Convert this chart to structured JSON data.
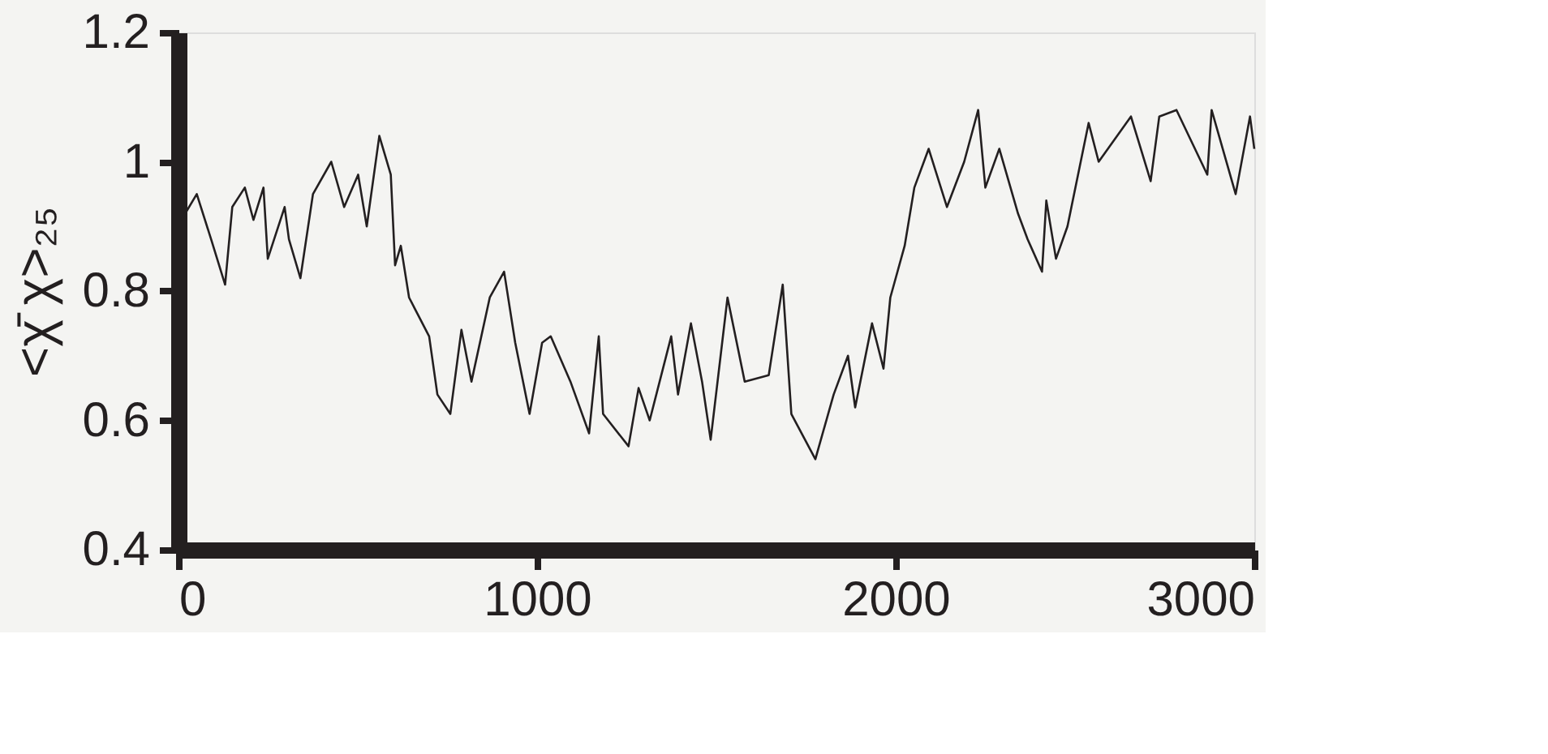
{
  "chart_data": {
    "type": "line",
    "ylabel": "<χ̄ χ>₂₅",
    "xlim": [
      0,
      3000
    ],
    "xticks": [
      0,
      1000,
      2000,
      3000
    ],
    "ylim": [
      0.4,
      1.2
    ],
    "yticks": [
      0.4,
      0.6,
      0.8,
      {
        "value": 1,
        "label": "1"
      },
      1.2
    ],
    "grid": false,
    "marker": "none",
    "line_style": "solid",
    "series": [
      {
        "color": "#231f20",
        "x": [
          8,
          51,
          91,
          130,
          150,
          185,
          209,
          237,
          249,
          296,
          308,
          340,
          375,
          426,
          462,
          501,
          525,
          560,
          592,
          604,
          620,
          643,
          699,
          722,
          758,
          789,
          817,
          868,
          908,
          939,
          979,
          1014,
          1038,
          1093,
          1145,
          1172,
          1184,
          1255,
          1283,
          1314,
          1374,
          1393,
          1429,
          1460,
          1484,
          1531,
          1579,
          1646,
          1685,
          1709,
          1776,
          1827,
          1867,
          1887,
          1934,
          1966,
          1985,
          2025,
          2052,
          2092,
          2143,
          2191,
          2230,
          2250,
          2289,
          2341,
          2368,
          2408,
          2420,
          2447,
          2479,
          2538,
          2566,
          2656,
          2711,
          2735,
          2783,
          2869,
          2881,
          2948,
          2988,
          3000
        ],
        "values": [
          0.91,
          0.95,
          0.88,
          0.81,
          0.93,
          0.96,
          0.91,
          0.96,
          0.85,
          0.93,
          0.88,
          0.82,
          0.95,
          1.0,
          0.93,
          0.98,
          0.9,
          1.04,
          0.98,
          0.84,
          0.87,
          0.79,
          0.73,
          0.64,
          0.61,
          0.74,
          0.66,
          0.79,
          0.83,
          0.72,
          0.61,
          0.72,
          0.73,
          0.66,
          0.58,
          0.73,
          0.61,
          0.56,
          0.65,
          0.6,
          0.73,
          0.64,
          0.75,
          0.66,
          0.57,
          0.79,
          0.66,
          0.67,
          0.81,
          0.61,
          0.54,
          0.64,
          0.7,
          0.62,
          0.75,
          0.68,
          0.79,
          0.87,
          0.96,
          1.02,
          0.93,
          1.0,
          1.08,
          0.96,
          1.02,
          0.92,
          0.88,
          0.83,
          0.94,
          0.85,
          0.9,
          1.06,
          1.0,
          1.07,
          0.97,
          1.07,
          1.08,
          0.98,
          1.08,
          0.95,
          1.07,
          1.02
        ]
      }
    ]
  }
}
